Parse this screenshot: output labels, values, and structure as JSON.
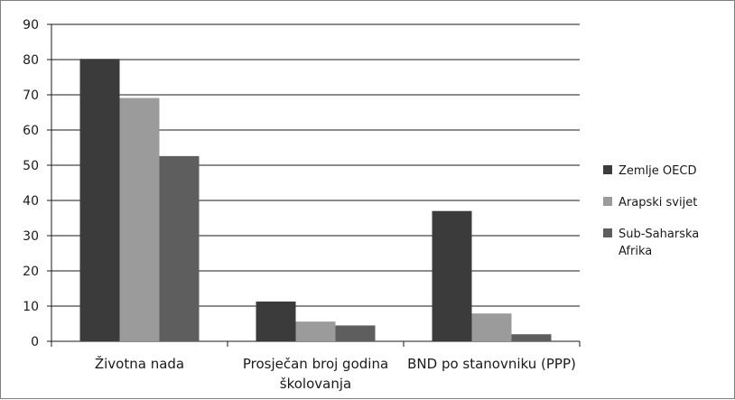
{
  "chart_data": {
    "type": "bar",
    "title": "",
    "xlabel": "",
    "ylabel": "",
    "ylim": [
      0,
      90
    ],
    "yticks": [
      0,
      10,
      20,
      30,
      40,
      50,
      60,
      70,
      80,
      90
    ],
    "grid": true,
    "legend_position": "right",
    "categories": [
      [
        "Životna nada"
      ],
      [
        "Prosječan broj godina",
        "školovanja"
      ],
      [
        "BND po stanovniku (PPP)"
      ]
    ],
    "series": [
      {
        "name": [
          "Zemlje OECD"
        ],
        "color": "#3b3b3b",
        "values": [
          80.2,
          11.3,
          37.0
        ]
      },
      {
        "name": [
          "Arapski svijet"
        ],
        "color": "#9b9b9b",
        "values": [
          69.1,
          5.6,
          7.9
        ]
      },
      {
        "name": [
          "Sub-Saharska",
          "Afrika"
        ],
        "color": "#5e5e5e",
        "values": [
          52.6,
          4.5,
          2.0
        ]
      }
    ]
  }
}
